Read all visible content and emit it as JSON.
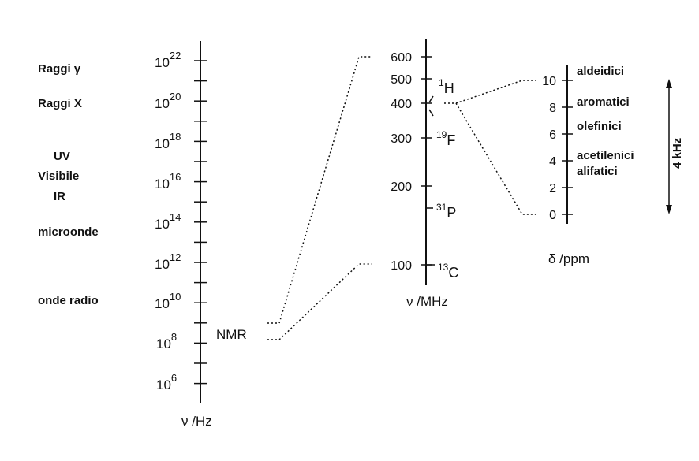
{
  "spectrum_axis": {
    "unit_label": "ν /Hz",
    "exp_base": "10",
    "exponents": [
      "22",
      "20",
      "18",
      "16",
      "14",
      "12",
      "10",
      "8",
      "6"
    ],
    "regions": [
      "Raggi γ",
      "Raggi X",
      "UV",
      "Visibile",
      "IR",
      "microonde",
      "onde radio"
    ],
    "nmr_label": "NMR"
  },
  "nmr_axis": {
    "unit_label": "ν /MHz",
    "ticks": [
      "600",
      "500",
      "400",
      "300",
      "200",
      "100"
    ],
    "nuclei": [
      {
        "mass": "1",
        "symbol": "H"
      },
      {
        "mass": "19",
        "symbol": "F"
      },
      {
        "mass": "31",
        "symbol": "P"
      },
      {
        "mass": "13",
        "symbol": "C"
      }
    ]
  },
  "shift_axis": {
    "unit_label": "δ /ppm",
    "ticks": [
      "10",
      "8",
      "6",
      "4",
      "2",
      "0"
    ],
    "groups": [
      "aldeidici",
      "aromatici",
      "olefinici",
      "acetilenici",
      "alifatici"
    ],
    "width_label": "4 kHz"
  }
}
